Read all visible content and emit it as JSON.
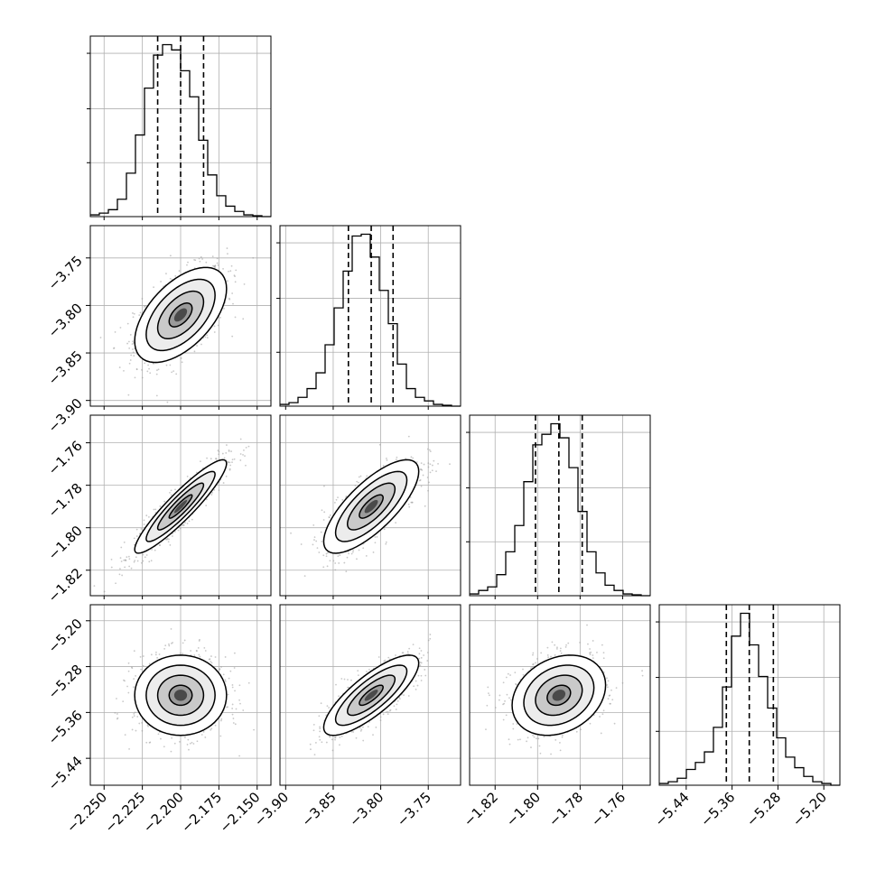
{
  "chart_data": {
    "type": "corner",
    "parameters": [
      {
        "ticks": [
          -2.25,
          -2.225,
          -2.2,
          -2.175,
          -2.15
        ],
        "tick_labels": [
          "−2.250",
          "−2.225",
          "−2.200",
          "−2.175",
          "−2.150"
        ],
        "range": [
          -2.259,
          -2.141
        ],
        "mean": -2.2,
        "sigma": 0.015,
        "quantiles": [
          -2.215,
          -2.2,
          -2.185
        ]
      },
      {
        "ticks": [
          -3.9,
          -3.85,
          -3.8,
          -3.75
        ],
        "tick_labels": [
          "−3.90",
          "−3.85",
          "−3.80",
          "−3.75"
        ],
        "range": [
          -3.906,
          -3.716
        ],
        "mean": -3.81,
        "sigma": 0.025,
        "quantiles": [
          -3.834,
          -3.81,
          -3.787
        ]
      },
      {
        "ticks": [
          -1.82,
          -1.8,
          -1.78,
          -1.76
        ],
        "tick_labels": [
          "−1.82",
          "−1.80",
          "−1.78",
          "−1.76"
        ],
        "range": [
          -1.832,
          -1.747
        ],
        "mean": -1.79,
        "sigma": 0.011,
        "quantiles": [
          -1.801,
          -1.79,
          -1.779
        ]
      },
      {
        "ticks": [
          -5.44,
          -5.36,
          -5.28,
          -5.2
        ],
        "tick_labels": [
          "−5.44",
          "−5.36",
          "−5.28",
          "−5.20"
        ],
        "range": [
          -5.487,
          -5.172
        ],
        "mean": -5.33,
        "sigma": 0.035,
        "quantiles": [
          -5.37,
          -5.33,
          -5.288
        ]
      }
    ],
    "correlations": [
      [
        1.0,
        0.55,
        0.92,
        0.0
      ],
      [
        0.55,
        1.0,
        0.75,
        0.8
      ],
      [
        0.92,
        0.75,
        1.0,
        0.25
      ],
      [
        0.0,
        0.8,
        0.25,
        1.0
      ]
    ],
    "hist_bins": 20,
    "hist_counts": [
      [
        0.01,
        0.02,
        0.04,
        0.1,
        0.25,
        0.47,
        0.74,
        0.93,
        0.99,
        0.96,
        0.84,
        0.69,
        0.44,
        0.24,
        0.12,
        0.06,
        0.03,
        0.01,
        0.005,
        0.0
      ],
      [
        0.01,
        0.02,
        0.05,
        0.1,
        0.19,
        0.35,
        0.56,
        0.77,
        0.97,
        0.98,
        0.85,
        0.66,
        0.47,
        0.24,
        0.1,
        0.05,
        0.03,
        0.01,
        0.005,
        0.0
      ],
      [
        0.01,
        0.03,
        0.05,
        0.12,
        0.25,
        0.4,
        0.65,
        0.86,
        0.92,
        0.98,
        0.9,
        0.73,
        0.48,
        0.25,
        0.13,
        0.06,
        0.03,
        0.01,
        0.005,
        0.0
      ],
      [
        0.01,
        0.02,
        0.04,
        0.09,
        0.13,
        0.19,
        0.33,
        0.56,
        0.85,
        0.98,
        0.8,
        0.62,
        0.44,
        0.27,
        0.16,
        0.1,
        0.05,
        0.02,
        0.01,
        0.0
      ]
    ],
    "contour_levels_sigma": [
      0.5,
      1.0,
      1.5,
      2.0
    ],
    "quantile_levels": [
      0.16,
      0.5,
      0.84
    ],
    "axis_labels": [],
    "title": "",
    "grid": true,
    "colors": {
      "line": "#000000",
      "grid": "#b0b0b0",
      "scatter": "#9a9a9a",
      "fill_levels": [
        "#ffffff",
        "#ececec",
        "#c9c9c9",
        "#9a9a9a",
        "#4a4a4a"
      ]
    }
  }
}
